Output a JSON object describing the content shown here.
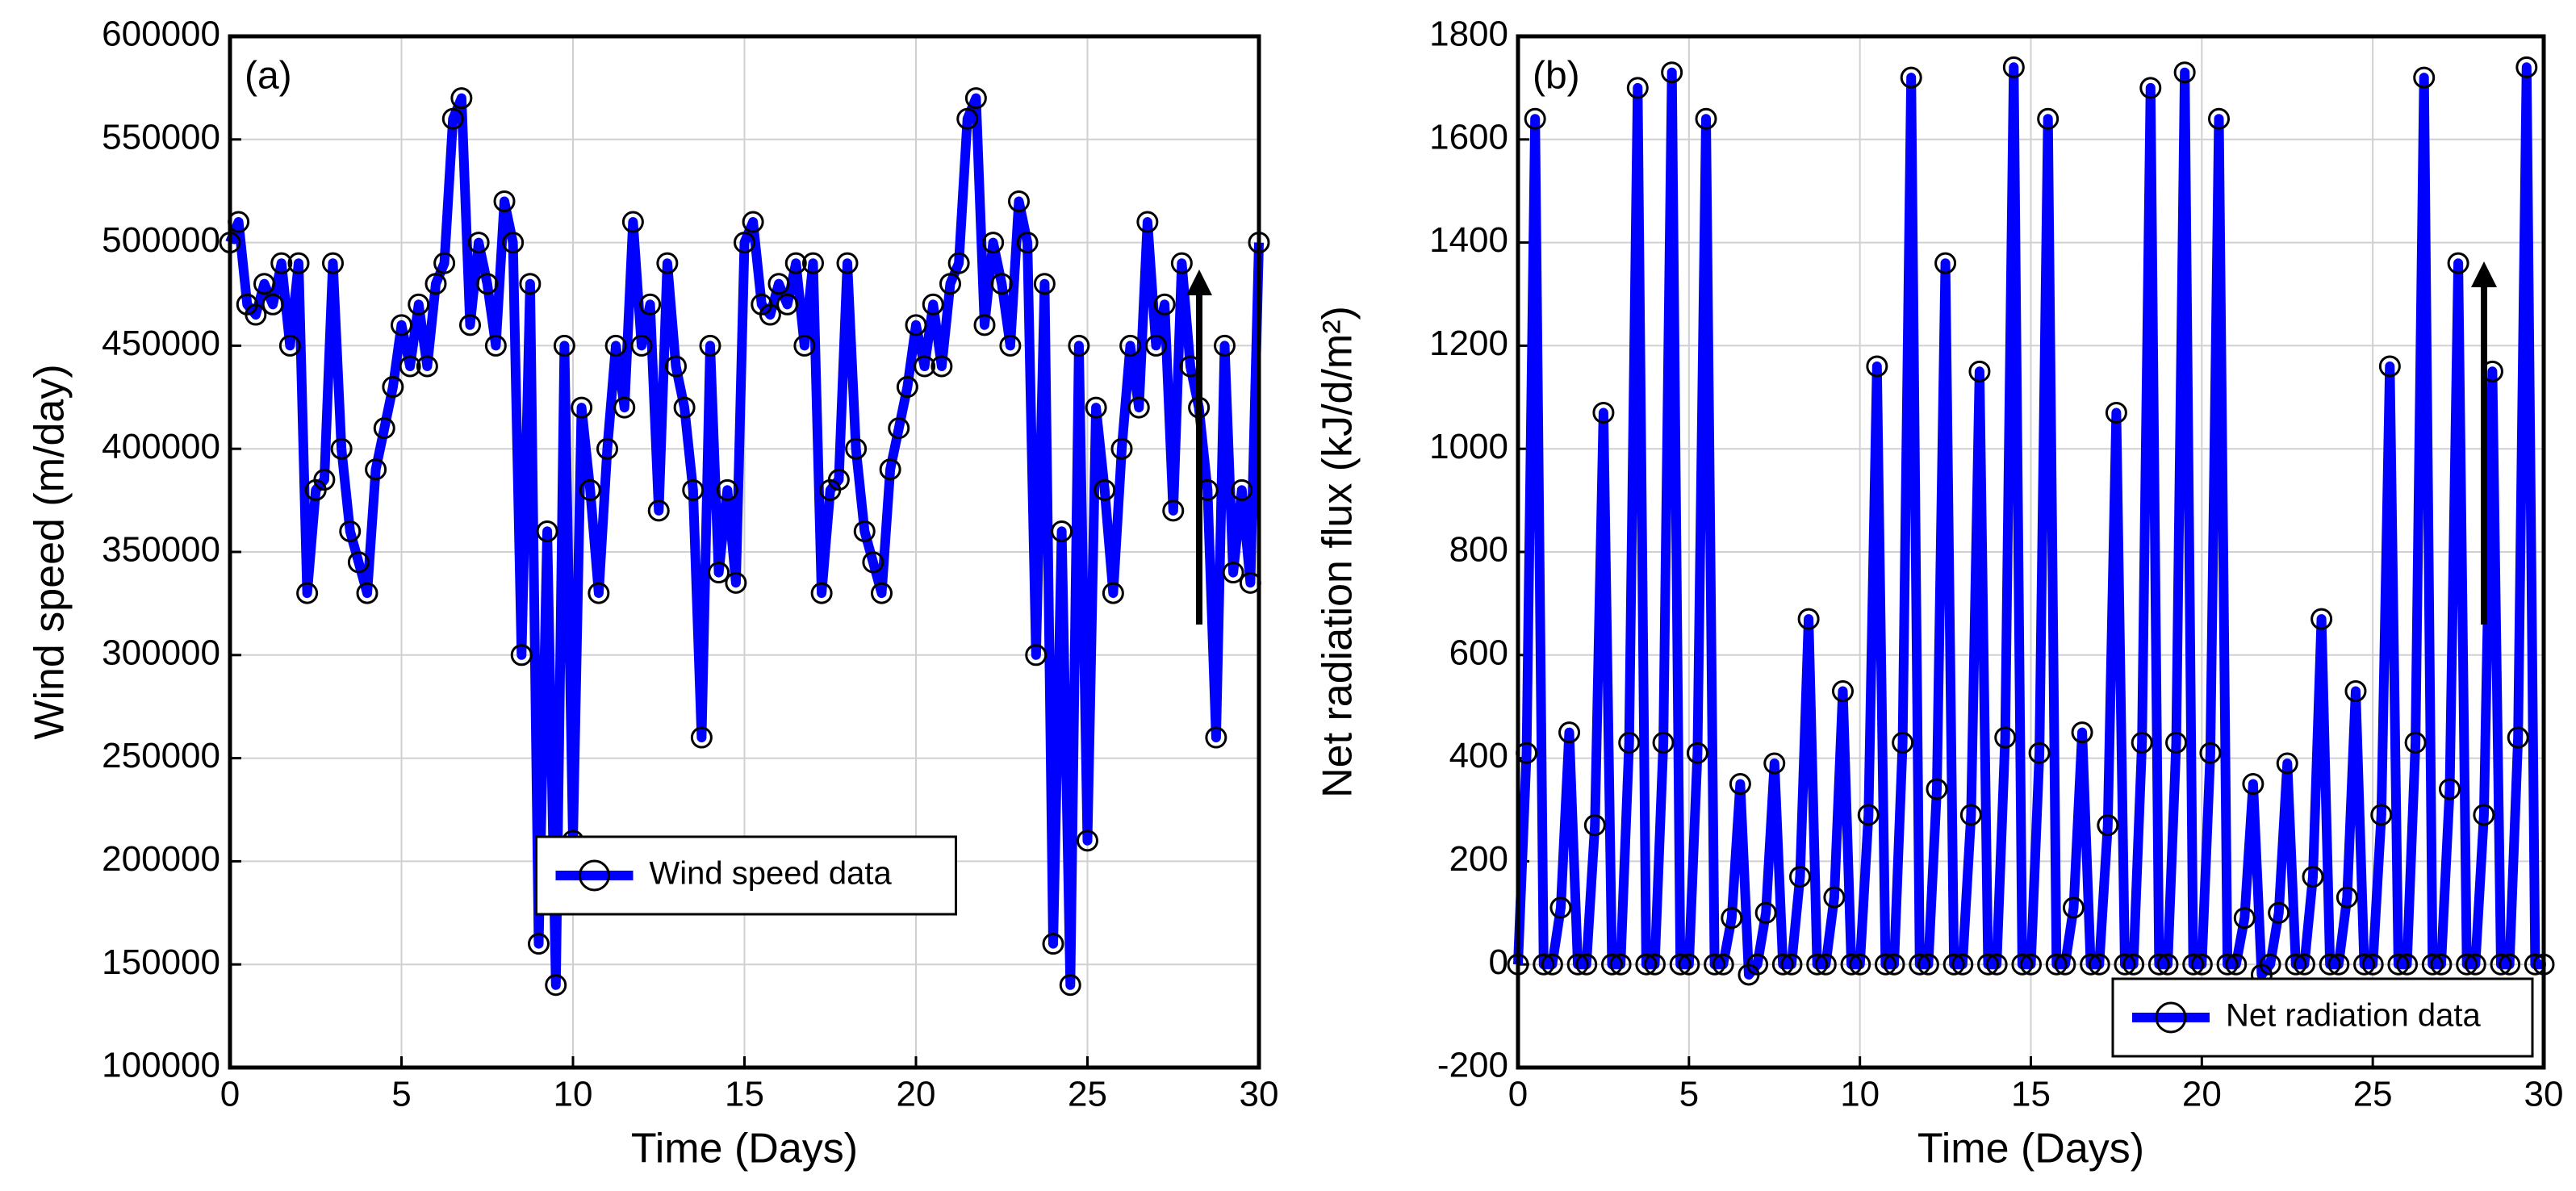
{
  "chart_data": [
    {
      "type": "line",
      "panel_label": "(a)",
      "xlabel": "Time (Days)",
      "ylabel": "Wind speed (m/day)",
      "x": [
        0,
        0.25,
        0.5,
        0.75,
        1,
        1.25,
        1.5,
        1.75,
        2,
        2.25,
        2.5,
        2.75,
        3,
        3.25,
        3.5,
        3.75,
        4,
        4.25,
        4.5,
        4.75,
        5,
        5.25,
        5.5,
        5.75,
        6,
        6.25,
        6.5,
        6.75,
        7,
        7.25,
        7.5,
        7.75,
        8,
        8.25,
        8.5,
        8.75,
        9,
        9.25,
        9.5,
        9.75,
        10,
        10.25,
        10.5,
        10.75,
        11,
        11.25,
        11.5,
        11.75,
        12,
        12.25,
        12.5,
        12.75,
        13,
        13.25,
        13.5,
        13.75,
        14,
        14.25,
        14.5,
        14.75,
        15,
        15.25,
        15.5,
        15.75,
        16,
        16.25,
        16.5,
        16.75,
        17,
        17.25,
        17.5,
        17.75,
        18,
        18.25,
        18.5,
        18.75,
        19,
        19.25,
        19.5,
        19.75,
        20,
        20.25,
        20.5,
        20.75,
        21,
        21.25,
        21.5,
        21.75,
        22,
        22.25,
        22.5,
        22.75,
        23,
        23.25,
        23.5,
        23.75,
        24,
        24.25,
        24.5,
        24.75,
        25,
        25.25,
        25.5,
        25.75,
        26,
        26.25,
        26.5,
        26.75,
        27,
        27.25,
        27.5,
        27.75,
        28,
        28.25,
        28.5,
        28.75,
        29,
        29.25,
        29.5,
        29.75,
        30
      ],
      "series": [
        {
          "name": "Wind speed data",
          "color": "#0000ff",
          "values": [
            500000,
            510000,
            470000,
            465000,
            480000,
            470000,
            490000,
            450000,
            490000,
            330000,
            380000,
            385000,
            490000,
            400000,
            360000,
            345000,
            330000,
            390000,
            410000,
            430000,
            460000,
            440000,
            470000,
            440000,
            480000,
            490000,
            560000,
            570000,
            460000,
            500000,
            480000,
            450000,
            520000,
            500000,
            300000,
            480000,
            160000,
            360000,
            140000,
            450000,
            210000,
            420000,
            380000,
            330000,
            400000,
            450000,
            420000,
            510000,
            450000,
            470000,
            370000,
            490000,
            440000,
            420000,
            380000,
            260000,
            450000,
            340000,
            380000,
            335000,
            500000,
            510000,
            470000,
            465000,
            480000,
            470000,
            490000,
            450000,
            490000,
            330000,
            380000,
            385000,
            490000,
            400000,
            360000,
            345000,
            330000,
            390000,
            410000,
            430000,
            460000,
            440000,
            470000,
            440000,
            480000,
            490000,
            560000,
            570000,
            460000,
            500000,
            480000,
            450000,
            520000,
            500000,
            300000,
            480000,
            160000,
            360000,
            140000,
            450000,
            210000,
            420000,
            380000,
            330000,
            400000,
            450000,
            420000,
            510000,
            450000,
            470000,
            370000,
            490000,
            440000,
            420000,
            380000,
            260000,
            450000,
            340000,
            380000,
            335000,
            500000
          ]
        }
      ],
      "marker": "o",
      "marker_color": "#000000",
      "xlim": [
        0,
        30
      ],
      "xticks": [
        0,
        5,
        10,
        15,
        20,
        25,
        30
      ],
      "ylim": [
        100000,
        600000
      ],
      "yticks": [
        100000,
        150000,
        200000,
        250000,
        300000,
        350000,
        400000,
        450000,
        500000,
        550000,
        600000
      ],
      "grid": true,
      "legend": "lower center"
    },
    {
      "type": "line",
      "panel_label": "(b)",
      "xlabel": "Time (Days)",
      "ylabel": "Net radiation flux (kJ/d/m²)",
      "x": [
        0,
        0.25,
        0.5,
        0.75,
        1,
        1.25,
        1.5,
        1.75,
        2,
        2.25,
        2.5,
        2.75,
        3,
        3.25,
        3.5,
        3.75,
        4,
        4.25,
        4.5,
        4.75,
        5,
        5.25,
        5.5,
        5.75,
        6,
        6.25,
        6.5,
        6.75,
        7,
        7.25,
        7.5,
        7.75,
        8,
        8.25,
        8.5,
        8.75,
        9,
        9.25,
        9.5,
        9.75,
        10,
        10.25,
        10.5,
        10.75,
        11,
        11.25,
        11.5,
        11.75,
        12,
        12.25,
        12.5,
        12.75,
        13,
        13.25,
        13.5,
        13.75,
        14,
        14.25,
        14.5,
        14.75,
        15,
        15.25,
        15.5,
        15.75,
        16,
        16.25,
        16.5,
        16.75,
        17,
        17.25,
        17.5,
        17.75,
        18,
        18.25,
        18.5,
        18.75,
        19,
        19.25,
        19.5,
        19.75,
        20,
        20.25,
        20.5,
        20.75,
        21,
        21.25,
        21.5,
        21.75,
        22,
        22.25,
        22.5,
        22.75,
        23,
        23.25,
        23.5,
        23.75,
        24,
        24.25,
        24.5,
        24.75,
        25,
        25.25,
        25.5,
        25.75,
        26,
        26.25,
        26.5,
        26.75,
        27,
        27.25,
        27.5,
        27.75,
        28,
        28.25,
        28.5,
        28.75,
        29,
        29.25,
        29.5,
        29.75,
        30
      ],
      "series": [
        {
          "name": "Net radiation data",
          "color": "#0000ff",
          "values": [
            0,
            410,
            1640,
            0,
            0,
            110,
            450,
            0,
            0,
            270,
            1070,
            0,
            0,
            430,
            1700,
            0,
            0,
            430,
            1730,
            0,
            0,
            410,
            1640,
            0,
            0,
            90,
            350,
            -20,
            0,
            100,
            390,
            0,
            0,
            170,
            670,
            0,
            0,
            130,
            530,
            0,
            0,
            290,
            1160,
            0,
            0,
            430,
            1720,
            0,
            0,
            340,
            1360,
            0,
            0,
            290,
            1150,
            0,
            0,
            440,
            1740,
            0,
            0,
            410,
            1640,
            0,
            0,
            110,
            450,
            0,
            0,
            270,
            1070,
            0,
            0,
            430,
            1700,
            0,
            0,
            430,
            1730,
            0,
            0,
            410,
            1640,
            0,
            0,
            90,
            350,
            -20,
            0,
            100,
            390,
            0,
            0,
            170,
            670,
            0,
            0,
            130,
            530,
            0,
            0,
            290,
            1160,
            0,
            0,
            430,
            1720,
            0,
            0,
            340,
            1360,
            0,
            0,
            290,
            1150,
            0,
            0,
            440,
            1740,
            0,
            0
          ]
        }
      ],
      "marker": "o",
      "marker_color": "#000000",
      "xlim": [
        0,
        30
      ],
      "xticks": [
        0,
        5,
        10,
        15,
        20,
        25,
        30
      ],
      "ylim": [
        -200,
        1800
      ],
      "yticks": [
        -200,
        0,
        200,
        400,
        600,
        800,
        1000,
        1200,
        1400,
        1600,
        1800
      ],
      "grid": true,
      "legend": "lower right"
    }
  ]
}
